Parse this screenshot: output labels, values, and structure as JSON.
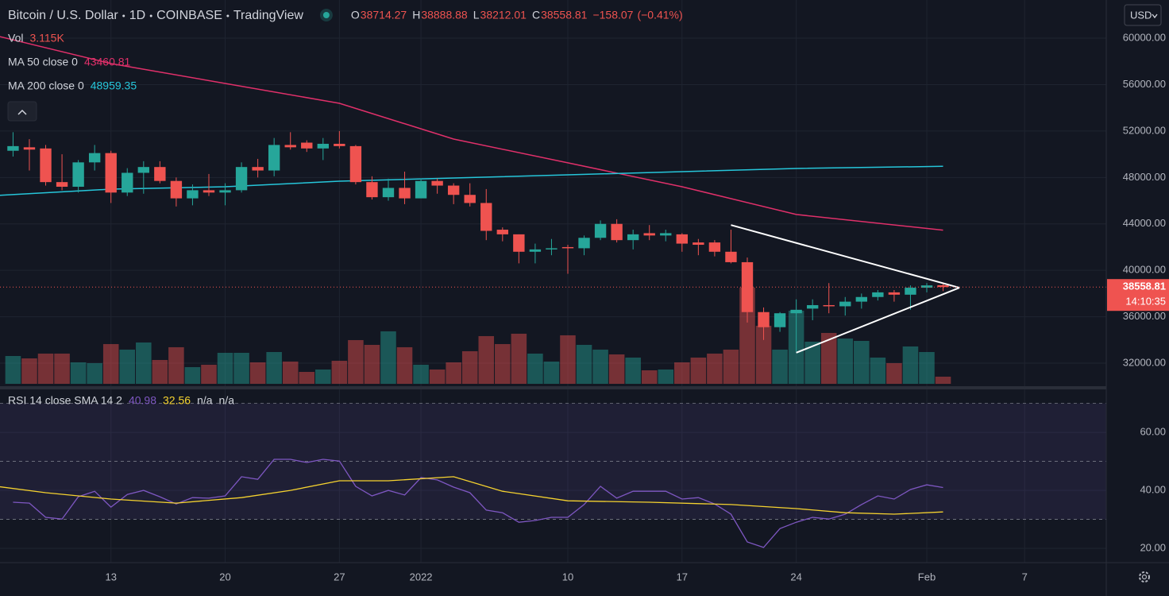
{
  "header": {
    "symbol": "Bitcoin / U.S. Dollar",
    "interval": "1D",
    "exchange": "COINBASE",
    "source": "TradingView",
    "fields": [
      "O",
      "H",
      "L",
      "C"
    ],
    "change": {
      "value": -158.07,
      "label": "−158.07"
    },
    "change_pct": {
      "value": -0.41,
      "label": "(−0.41%)"
    },
    "currency": "USD"
  },
  "chart_data": [
    {
      "type": "candlestick",
      "colors": {
        "up": "#26a69a",
        "down": "#ef5350"
      },
      "x": [
        -6,
        -5,
        -4,
        -3,
        -2,
        -1,
        0,
        1,
        2,
        3,
        4,
        5,
        6,
        7,
        8,
        9,
        10,
        11,
        12,
        13,
        14,
        15,
        16,
        17,
        18,
        19,
        20,
        21,
        22,
        23,
        24,
        25,
        26,
        27,
        28,
        29,
        30,
        31,
        32,
        33,
        34,
        35,
        36,
        37,
        38,
        39,
        40,
        41,
        42,
        43,
        44,
        45,
        46,
        47,
        48,
        49,
        50,
        51
      ],
      "open": [
        50300,
        50600,
        50500,
        47600,
        47200,
        49300,
        50100,
        46700,
        48400,
        48900,
        47700,
        46200,
        46900,
        46700,
        46900,
        48900,
        48600,
        50800,
        51000,
        50500,
        50900,
        50700,
        47600,
        46300,
        47100,
        46200,
        47700,
        47300,
        46500,
        45800,
        43500,
        43100,
        41600,
        41800,
        42000,
        41900,
        42800,
        44000,
        42600,
        43200,
        43000,
        43100,
        42400,
        42400,
        41600,
        40700,
        36400,
        35100,
        36300,
        36700,
        37000,
        36900,
        37300,
        37700,
        38100,
        37900,
        38500,
        38714.27
      ],
      "high": [
        51900,
        51300,
        50800,
        50000,
        49500,
        50800,
        50300,
        48800,
        49400,
        49400,
        48000,
        47400,
        48300,
        47500,
        49300,
        49600,
        51400,
        51900,
        51200,
        51400,
        52000,
        50800,
        48100,
        47900,
        48500,
        47900,
        47900,
        47500,
        47500,
        47000,
        43700,
        43100,
        42300,
        42700,
        42200,
        43000,
        44300,
        44400,
        43500,
        43900,
        43500,
        43200,
        42700,
        42600,
        43500,
        41100,
        36800,
        36400,
        37500,
        37500,
        38900,
        37700,
        38000,
        38300,
        38300,
        38700,
        38900,
        38888.88
      ],
      "low": [
        49800,
        48600,
        47300,
        46900,
        46700,
        48600,
        45800,
        46400,
        46600,
        47500,
        45500,
        45600,
        46400,
        45600,
        46700,
        48000,
        48100,
        50400,
        50200,
        49500,
        50500,
        47400,
        46100,
        46000,
        45700,
        46200,
        46600,
        45700,
        45500,
        42600,
        42500,
        40600,
        40600,
        41300,
        39700,
        41300,
        42600,
        42400,
        41800,
        42600,
        42500,
        41600,
        41300,
        41200,
        40600,
        35500,
        34000,
        34700,
        33000,
        35700,
        36300,
        36100,
        36700,
        37400,
        37300,
        36600,
        38100,
        38212.01
      ],
      "close": [
        50700,
        50400,
        47600,
        47200,
        49300,
        50100,
        46700,
        48400,
        48900,
        47700,
        46200,
        46900,
        46700,
        46900,
        48900,
        48600,
        50800,
        50600,
        50500,
        50900,
        50700,
        47600,
        46300,
        47100,
        46200,
        47700,
        47300,
        46500,
        45800,
        43400,
        43100,
        41600,
        41800,
        41900,
        41900,
        42800,
        44000,
        42600,
        43100,
        43000,
        43200,
        42300,
        42200,
        41600,
        40700,
        36400,
        35100,
        36300,
        36600,
        37000,
        36900,
        37300,
        37700,
        38100,
        37900,
        38500,
        38700,
        38558.81
      ],
      "countdown": "14:10:35",
      "xlim": [
        -6.8,
        61
      ],
      "ylim": [
        30220,
        63290
      ],
      "yticks": [
        {
          "value": 60000,
          "label": "60000.00"
        },
        {
          "value": 56000,
          "label": "56000.00"
        },
        {
          "value": 52000,
          "label": "52000.00"
        },
        {
          "value": 48000,
          "label": "48000.00"
        },
        {
          "value": 44000,
          "label": "44000.00"
        },
        {
          "value": 40000,
          "label": "40000.00"
        },
        {
          "value": 36000,
          "label": "36000.00"
        },
        {
          "value": 32000,
          "label": "32000.00"
        }
      ],
      "grid": true,
      "volume": {
        "name": "Vol",
        "label": "3.115K",
        "ylim": [
          0,
          167000
        ],
        "values": [
          12110,
          11070,
          13150,
          13150,
          9340,
          9000,
          17300,
          14880,
          17990,
          10380,
          15920,
          7270,
          8300,
          13490,
          13490,
          9340,
          13840,
          9690,
          5190,
          6230,
          10030,
          19030,
          16950,
          22840,
          15920,
          8300,
          6230,
          9340,
          14190,
          20760,
          17300,
          21800,
          13150,
          9690,
          21110,
          16950,
          14880,
          12800,
          11420,
          5880,
          6230,
          9340,
          11420,
          13150,
          14880,
          41870,
          25260,
          14880,
          31830,
          18340,
          22140,
          19720,
          18680,
          11420,
          9000,
          16260,
          13840,
          3115
        ]
      },
      "series": [
        {
          "name": "MA 50 close 0",
          "color": "#e0306a",
          "x": [
            -7,
            0,
            7,
            14,
            21,
            28,
            35,
            42,
            51
          ],
          "values": [
            60205,
            57810,
            56100,
            54390,
            51310,
            49260,
            47200,
            44810,
            43460.81
          ]
        },
        {
          "name": "MA 200 close 0",
          "color": "#26c6da",
          "x": [
            -7,
            0,
            7,
            14,
            21,
            28,
            35,
            42,
            51
          ],
          "values": [
            46445,
            46993,
            47199,
            47678,
            47952,
            48226,
            48500,
            48774,
            48959.35
          ]
        }
      ],
      "trendlines": [
        {
          "color": "#ffffff",
          "x": [
            38,
            52
          ],
          "y": [
            43900,
            38500
          ]
        },
        {
          "color": "#ffffff",
          "x": [
            42,
            52
          ],
          "y": [
            32900,
            38500
          ]
        }
      ]
    },
    {
      "type": "line",
      "legend": "RSI 14 close SMA 14 2",
      "extra_values": [
        "n/a",
        "n/a"
      ],
      "series": [
        {
          "color": "#7e57c2",
          "x": [
            -6,
            -5,
            -4,
            -3,
            -2,
            -1,
            0,
            1,
            2,
            3,
            4,
            5,
            6,
            7,
            8,
            9,
            10,
            11,
            12,
            13,
            14,
            15,
            16,
            17,
            18,
            19,
            20,
            21,
            22,
            23,
            24,
            25,
            26,
            27,
            28,
            29,
            30,
            31,
            32,
            33,
            34,
            35,
            36,
            37,
            38,
            39,
            40,
            41,
            42,
            43,
            44,
            45,
            46,
            47,
            48,
            49,
            50,
            51
          ],
          "values": [
            35.9,
            35.6,
            30.7,
            30.1,
            37.8,
            39.7,
            34.2,
            38.6,
            40.0,
            37.8,
            35.3,
            37.5,
            37.3,
            38.1,
            44.7,
            43.8,
            50.7,
            50.7,
            49.6,
            50.7,
            50.1,
            41.4,
            38.1,
            40.0,
            38.4,
            44.4,
            43.6,
            41.1,
            39.2,
            33.2,
            32.3,
            29.0,
            29.6,
            30.7,
            30.7,
            35.1,
            41.4,
            37.3,
            39.7,
            39.7,
            39.7,
            37.0,
            37.5,
            35.3,
            31.8,
            22.2,
            20.3,
            26.8,
            29.0,
            30.7,
            30.1,
            31.8,
            35.1,
            38.1,
            37.0,
            40.3,
            41.9,
            40.98
          ]
        },
        {
          "color": "#f5d22f",
          "x": [
            -7,
            -4,
            0,
            4,
            8,
            11,
            14,
            17,
            21,
            24,
            28,
            33,
            38,
            42,
            45,
            48,
            51
          ],
          "values": [
            41.4,
            39.2,
            37.0,
            35.6,
            37.5,
            40.0,
            43.3,
            43.3,
            44.7,
            39.7,
            36.4,
            35.9,
            35.1,
            33.7,
            32.3,
            31.8,
            32.56
          ]
        }
      ],
      "levels": [
        70,
        50,
        30
      ],
      "xlim": [
        -6.8,
        61
      ],
      "ylim": [
        15.9,
        74
      ],
      "yticks": [
        {
          "value": 20,
          "label": "20.00"
        },
        {
          "value": 40,
          "label": "40.00"
        },
        {
          "value": 60,
          "label": "60.00"
        }
      ],
      "xticks": [
        {
          "value": 0,
          "label": "13"
        },
        {
          "value": 7,
          "label": "20"
        },
        {
          "value": 14,
          "label": "27"
        },
        {
          "value": 19,
          "label": "2022"
        },
        {
          "value": 28,
          "label": "10"
        },
        {
          "value": 35,
          "label": "17"
        },
        {
          "value": 42,
          "label": "24"
        },
        {
          "value": 50,
          "label": "Feb"
        },
        {
          "value": 56,
          "label": "7"
        }
      ]
    }
  ]
}
